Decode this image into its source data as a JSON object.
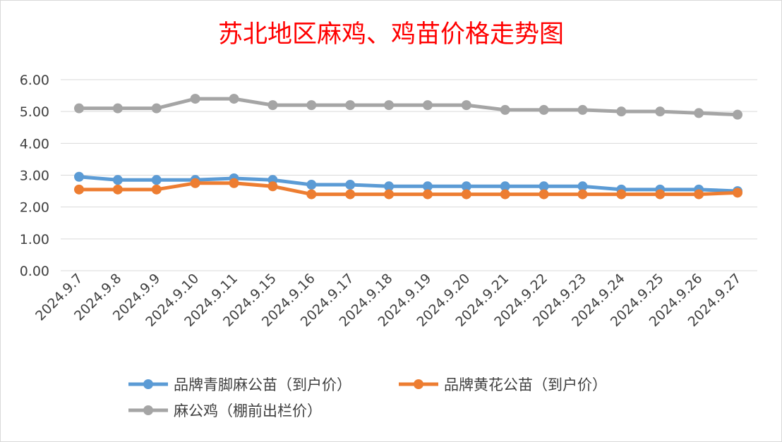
{
  "chart_data": {
    "type": "line",
    "title": "苏北地区麻鸡、鸡苗价格走势图",
    "xlabel": "",
    "ylabel": "",
    "ylim": [
      0,
      6
    ],
    "yticks": [
      "0.00",
      "1.00",
      "2.00",
      "3.00",
      "4.00",
      "5.00",
      "6.00"
    ],
    "grid": true,
    "legend_position": "bottom",
    "categories": [
      "2024.9.7",
      "2024.9.8",
      "2024.9.9",
      "2024.9.10",
      "2024.9.11",
      "2024.9.15",
      "2024.9.16",
      "2024.9.17",
      "2024.9.18",
      "2024.9.19",
      "2024.9.20",
      "2024.9.21",
      "2024.9.22",
      "2024.9.23",
      "2024.9.24",
      "2024.9.25",
      "2024.9.26",
      "2024.9.27"
    ],
    "series": [
      {
        "name": "品牌青脚麻公苗（到户价）",
        "color": "#5b9bd5",
        "values": [
          2.95,
          2.85,
          2.85,
          2.85,
          2.9,
          2.85,
          2.7,
          2.7,
          2.65,
          2.65,
          2.65,
          2.65,
          2.65,
          2.65,
          2.55,
          2.55,
          2.55,
          2.5
        ]
      },
      {
        "name": "品牌黄花公苗（到户价）",
        "color": "#ed7d31",
        "values": [
          2.55,
          2.55,
          2.55,
          2.75,
          2.75,
          2.65,
          2.4,
          2.4,
          2.4,
          2.4,
          2.4,
          2.4,
          2.4,
          2.4,
          2.4,
          2.4,
          2.4,
          2.45
        ]
      },
      {
        "name": "麻公鸡（棚前出栏价）",
        "color": "#a5a5a5",
        "values": [
          5.1,
          5.1,
          5.1,
          5.4,
          5.4,
          5.2,
          5.2,
          5.2,
          5.2,
          5.2,
          5.2,
          5.05,
          5.05,
          5.05,
          5.0,
          5.0,
          4.95,
          4.9
        ]
      }
    ]
  }
}
